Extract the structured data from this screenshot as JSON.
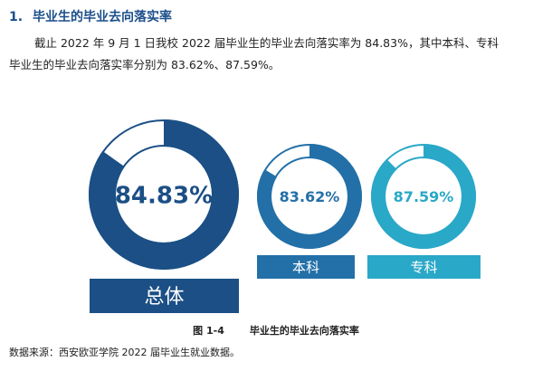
{
  "section": {
    "number": "1.",
    "title": "毕业生的毕业去向落实率"
  },
  "paragraph": {
    "line1": "截止 2022 年 9 月 1 日我校 2022 届毕业生的毕业去向落实率为 84.83%，其中本科、专科",
    "line2": "毕业生的毕业去向落实率分别为 83.62%、87.59%。"
  },
  "chart_data": {
    "type": "donut",
    "series": [
      {
        "name": "总体",
        "value": 84.83,
        "label": "84.83%",
        "color": "#1b4f85"
      },
      {
        "name": "本科",
        "value": 83.62,
        "label": "83.62%",
        "color": "#2370a8"
      },
      {
        "name": "专科",
        "value": 87.59,
        "label": "87.59%",
        "color": "#2aa8c8"
      }
    ]
  },
  "figure": {
    "number": "图 1-4",
    "caption": "毕业生的毕业去向落实率"
  },
  "source": "数据来源：西安欧亚学院 2022 届毕业生就业数据。"
}
